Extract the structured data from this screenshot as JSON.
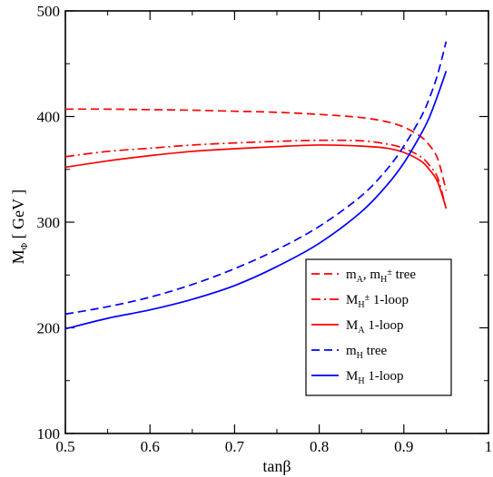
{
  "chart_data": {
    "type": "line",
    "xlabel": "tanβ",
    "ylabel": "M_Φ [ GeV ]",
    "xlim": [
      0.5,
      1.0
    ],
    "ylim": [
      100,
      500
    ],
    "x_ticks": [
      "0.5",
      "0.6",
      "0.7",
      "0.8",
      "0.9",
      "1"
    ],
    "y_ticks": [
      "100",
      "200",
      "300",
      "400",
      "500"
    ],
    "legend_position": "bottom-right",
    "series": [
      {
        "name": "m_A, m_H± tree",
        "color": "#ff0000",
        "dash": "dashed",
        "points": [
          [
            0.5,
            407
          ],
          [
            0.55,
            407
          ],
          [
            0.6,
            406.5
          ],
          [
            0.65,
            406
          ],
          [
            0.7,
            405
          ],
          [
            0.75,
            404
          ],
          [
            0.8,
            402
          ],
          [
            0.85,
            399
          ],
          [
            0.88,
            395
          ],
          [
            0.9,
            390
          ],
          [
            0.92,
            381
          ],
          [
            0.93,
            373
          ],
          [
            0.94,
            360
          ],
          [
            0.95,
            330
          ]
        ]
      },
      {
        "name": "M_H± 1-loop",
        "color": "#ff0000",
        "dash": "dashdot",
        "points": [
          [
            0.5,
            362
          ],
          [
            0.55,
            367
          ],
          [
            0.6,
            370
          ],
          [
            0.65,
            373
          ],
          [
            0.7,
            375
          ],
          [
            0.75,
            376.5
          ],
          [
            0.8,
            377.5
          ],
          [
            0.85,
            377
          ],
          [
            0.88,
            374
          ],
          [
            0.9,
            370
          ],
          [
            0.92,
            362
          ],
          [
            0.93,
            354
          ],
          [
            0.94,
            342
          ],
          [
            0.95,
            313
          ]
        ]
      },
      {
        "name": "M_A 1-loop",
        "color": "#ff0000",
        "dash": "solid",
        "points": [
          [
            0.5,
            352
          ],
          [
            0.55,
            358
          ],
          [
            0.6,
            363
          ],
          [
            0.65,
            367
          ],
          [
            0.7,
            369.5
          ],
          [
            0.75,
            371.5
          ],
          [
            0.8,
            373
          ],
          [
            0.85,
            372
          ],
          [
            0.88,
            370
          ],
          [
            0.9,
            366
          ],
          [
            0.92,
            358
          ],
          [
            0.93,
            350
          ],
          [
            0.94,
            338
          ],
          [
            0.95,
            313
          ]
        ]
      },
      {
        "name": "m_H tree",
        "color": "#0000ff",
        "dash": "dashed",
        "points": [
          [
            0.5,
            213
          ],
          [
            0.55,
            220
          ],
          [
            0.6,
            229
          ],
          [
            0.65,
            241
          ],
          [
            0.7,
            256
          ],
          [
            0.75,
            274
          ],
          [
            0.8,
            296
          ],
          [
            0.85,
            325
          ],
          [
            0.88,
            350
          ],
          [
            0.9,
            372
          ],
          [
            0.92,
            399
          ],
          [
            0.93,
            417
          ],
          [
            0.94,
            440
          ],
          [
            0.95,
            471
          ]
        ]
      },
      {
        "name": "M_H 1-loop",
        "color": "#0000ff",
        "dash": "solid",
        "points": [
          [
            0.5,
            199
          ],
          [
            0.55,
            209
          ],
          [
            0.6,
            217
          ],
          [
            0.65,
            227
          ],
          [
            0.7,
            240
          ],
          [
            0.75,
            258
          ],
          [
            0.8,
            280
          ],
          [
            0.85,
            310
          ],
          [
            0.88,
            335
          ],
          [
            0.9,
            356
          ],
          [
            0.92,
            383
          ],
          [
            0.93,
            399
          ],
          [
            0.94,
            420
          ],
          [
            0.95,
            443
          ]
        ]
      }
    ]
  },
  "legend": {
    "items": [
      {
        "main": "m",
        "sub": "A",
        "rest": ", m",
        "sub2": "H",
        "sup2": "±",
        "tail": " tree"
      },
      {
        "main": "M",
        "sub": "H",
        "sup": "±",
        "tail": "  1-loop"
      },
      {
        "main": "M",
        "sub": "A",
        "tail": "   1-loop"
      },
      {
        "main": "m",
        "sub": "H",
        "tail": "    tree"
      },
      {
        "main": "M",
        "sub": "H",
        "tail": "   1-loop"
      }
    ]
  }
}
